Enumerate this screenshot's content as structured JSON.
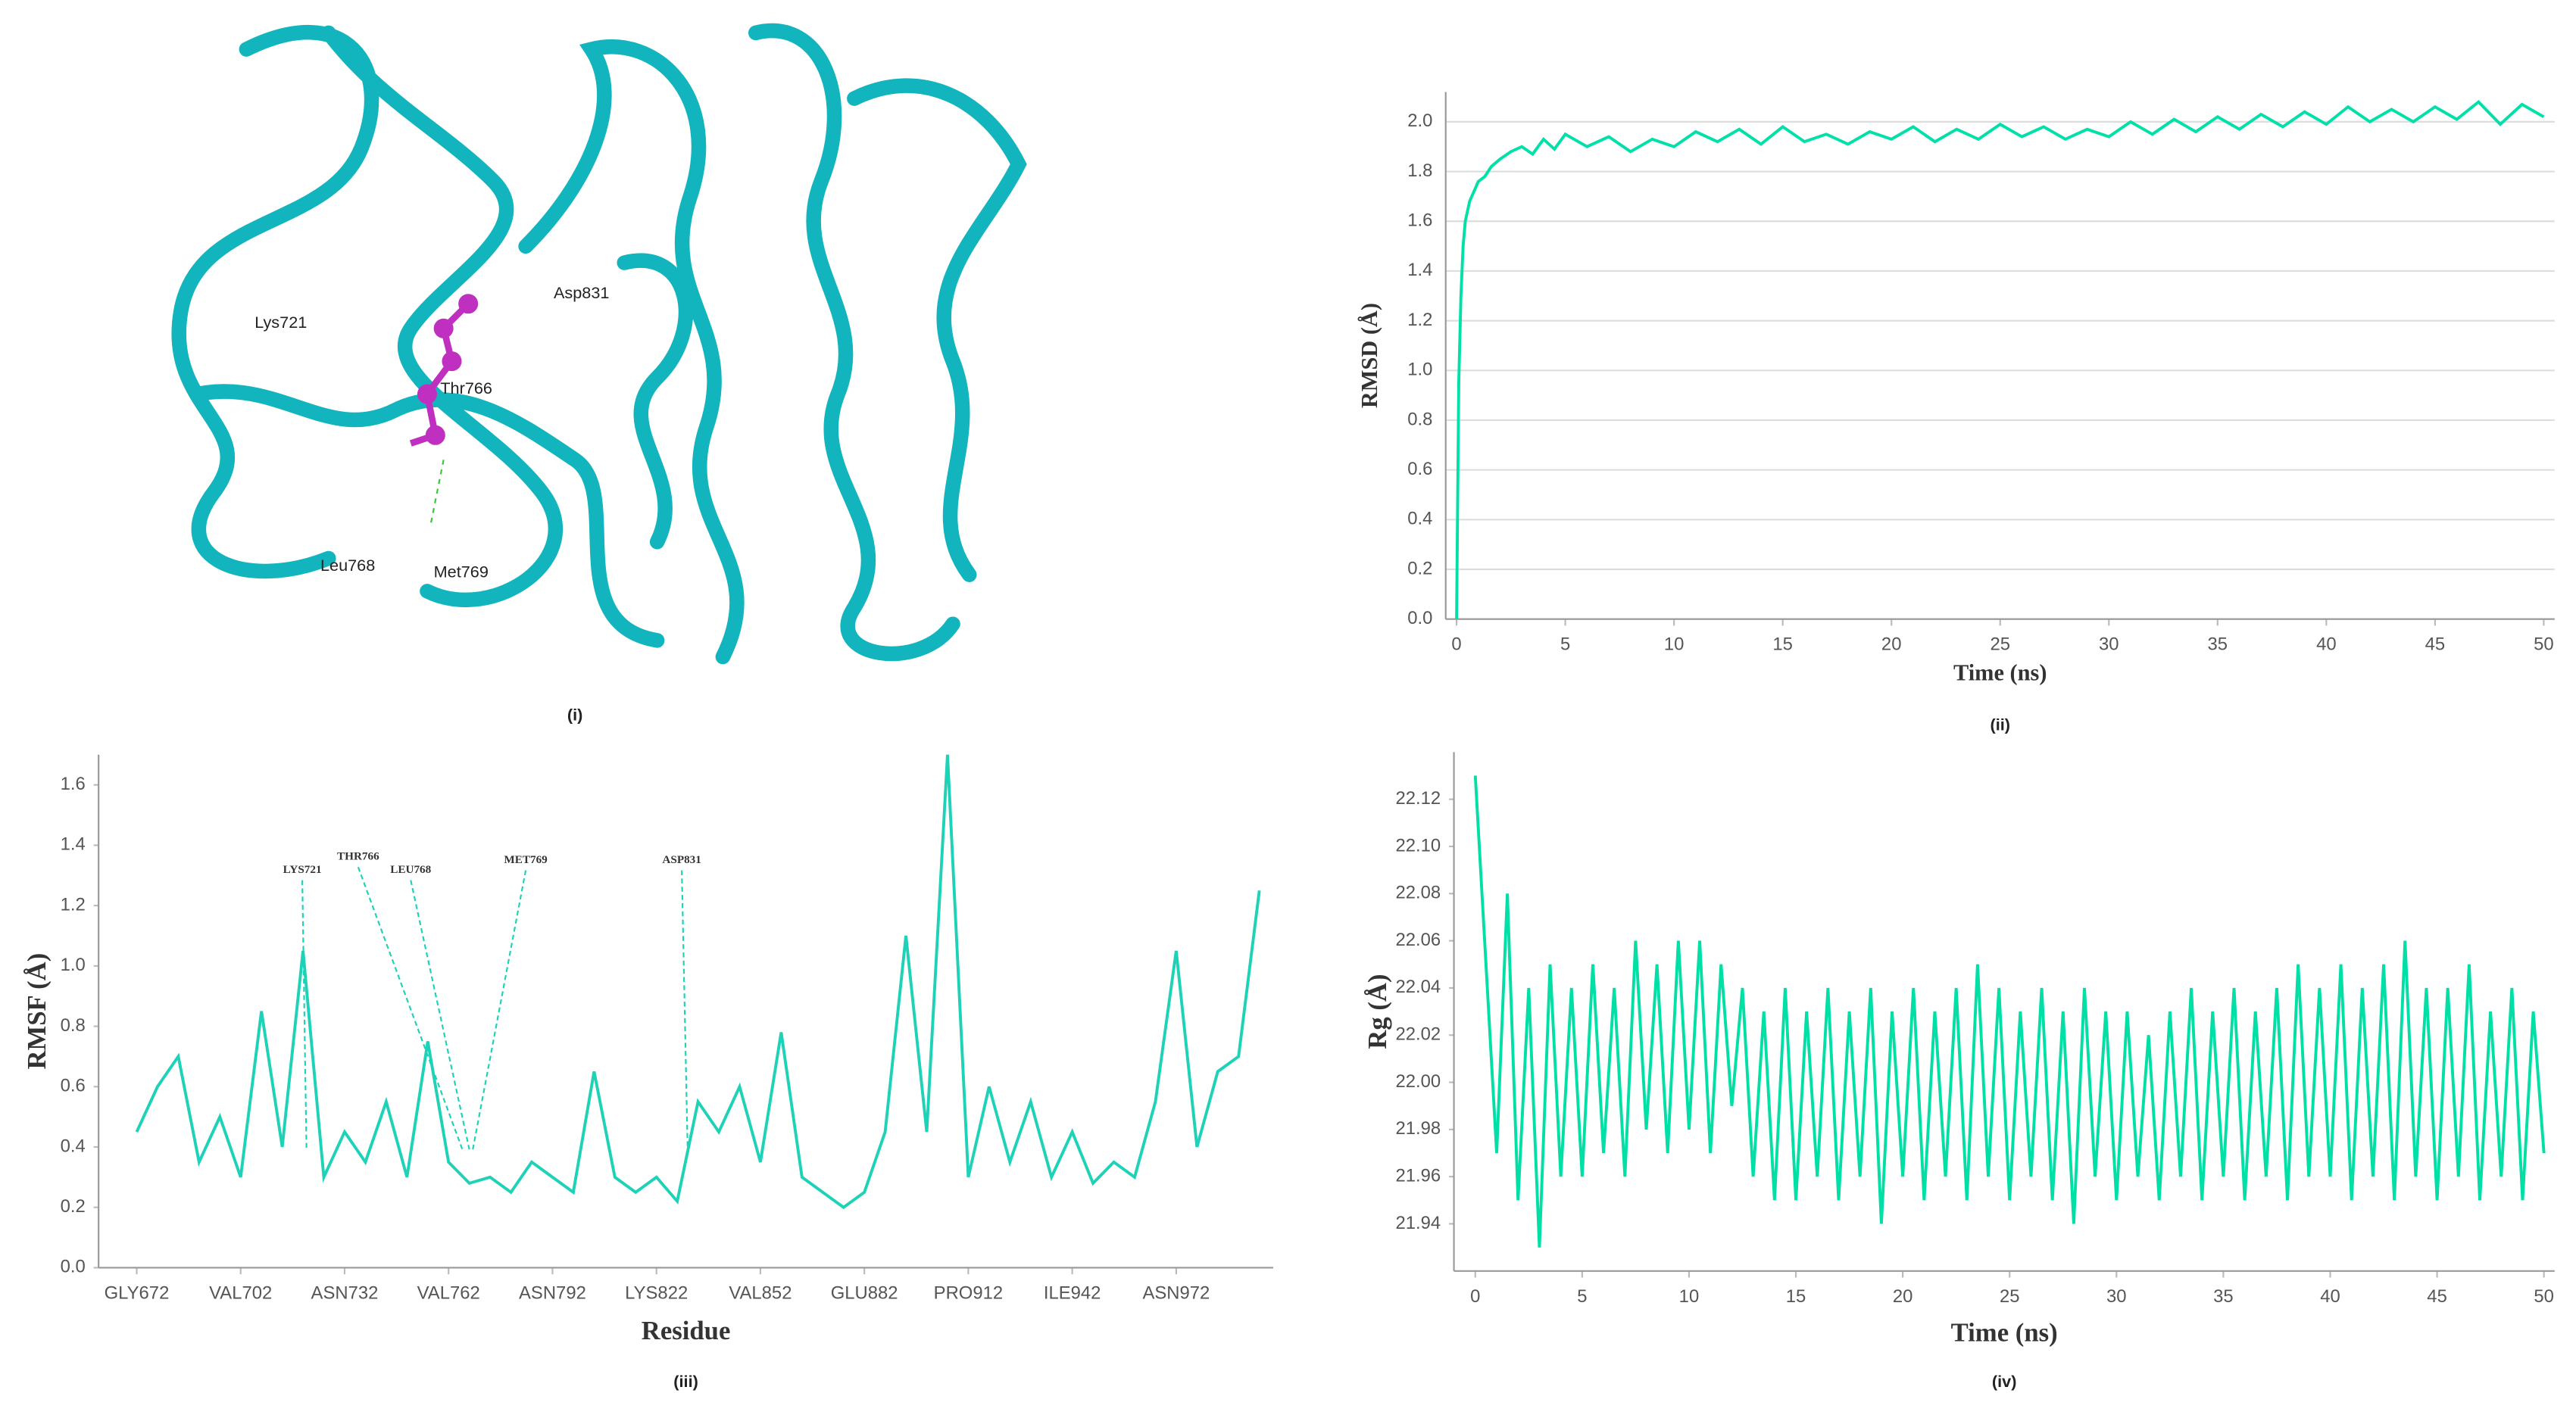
{
  "structure": {
    "labels": [
      "Lys721",
      "Asp831",
      "Thr766",
      "Leu768",
      "Met769"
    ],
    "caption": "(i)"
  },
  "chart_data": [
    {
      "type": "line",
      "caption": "(ii)",
      "xlabel": "Time (ns)",
      "ylabel": "RMSD (Å)",
      "color": "#00e0a8",
      "grid": true,
      "xlim": [
        -0.5,
        50.5
      ],
      "ylim": [
        0,
        2.12
      ],
      "xticks": [
        0,
        5,
        10,
        15,
        20,
        25,
        30,
        35,
        40,
        45,
        50
      ],
      "yticks": [
        {
          "value": 0,
          "label": "0.0"
        },
        0.2,
        0.4,
        0.6,
        0.8,
        {
          "value": 1,
          "label": "1.0"
        },
        1.2,
        1.4,
        1.6,
        1.8,
        {
          "value": 2,
          "label": "2.0"
        }
      ],
      "x": [
        0,
        0.1,
        0.2,
        0.3,
        0.4,
        0.6,
        0.8,
        1,
        1.3,
        1.6,
        2,
        2.5,
        3,
        3.5,
        4,
        4.5,
        5,
        6,
        7,
        8,
        9,
        10,
        11,
        12,
        13,
        14,
        15,
        16,
        17,
        18,
        19,
        20,
        21,
        22,
        23,
        24,
        25,
        26,
        27,
        28,
        29,
        30,
        31,
        32,
        33,
        34,
        35,
        36,
        37,
        38,
        39,
        40,
        41,
        42,
        43,
        44,
        45,
        46,
        47,
        48,
        49,
        50
      ],
      "values": [
        0,
        0.95,
        1.3,
        1.5,
        1.6,
        1.68,
        1.72,
        1.76,
        1.78,
        1.82,
        1.85,
        1.88,
        1.9,
        1.87,
        1.93,
        1.89,
        1.95,
        1.9,
        1.94,
        1.88,
        1.93,
        1.9,
        1.96,
        1.92,
        1.97,
        1.91,
        1.98,
        1.92,
        1.95,
        1.91,
        1.96,
        1.93,
        1.98,
        1.92,
        1.97,
        1.93,
        1.99,
        1.94,
        1.98,
        1.93,
        1.97,
        1.94,
        2.0,
        1.95,
        2.01,
        1.96,
        2.02,
        1.97,
        2.03,
        1.98,
        2.04,
        1.99,
        2.06,
        2.0,
        2.05,
        2.0,
        2.06,
        2.01,
        2.08,
        1.99,
        2.07,
        2.02
      ]
    },
    {
      "type": "line",
      "caption": "(iii)",
      "xlabel": "Residue",
      "ylabel": "RMSF (Å)",
      "color": "#1ed2b8",
      "grid": false,
      "xlim": [
        661,
        1000
      ],
      "ylim": [
        0,
        1.7
      ],
      "xticks": [
        {
          "value": 672,
          "label": "GLY672"
        },
        {
          "value": 702,
          "label": "VAL702"
        },
        {
          "value": 732,
          "label": "ASN732"
        },
        {
          "value": 762,
          "label": "VAL762"
        },
        {
          "value": 792,
          "label": "ASN792"
        },
        {
          "value": 822,
          "label": "LYS822"
        },
        {
          "value": 852,
          "label": "VAL852"
        },
        {
          "value": 882,
          "label": "GLU882"
        },
        {
          "value": 912,
          "label": "PRO912"
        },
        {
          "value": 942,
          "label": "ILE942"
        },
        {
          "value": 972,
          "label": "ASN972"
        }
      ],
      "yticks": [
        {
          "value": 0,
          "label": "0.0"
        },
        0.2,
        0.4,
        0.6,
        0.8,
        {
          "value": 1,
          "label": "1.0"
        },
        1.2,
        1.4,
        1.6
      ],
      "annotations": [
        {
          "text": "LYS721",
          "x": 721
        },
        {
          "text": "THR766",
          "x": 766
        },
        {
          "text": "LEU768",
          "x": 768
        },
        {
          "text": "MET769",
          "x": 769
        },
        {
          "text": "ASP831",
          "x": 831
        }
      ],
      "x": [
        672,
        678,
        684,
        690,
        696,
        702,
        708,
        714,
        720,
        726,
        732,
        738,
        744,
        750,
        756,
        762,
        768,
        774,
        780,
        786,
        792,
        798,
        804,
        810,
        816,
        822,
        828,
        834,
        840,
        846,
        852,
        858,
        864,
        870,
        876,
        882,
        888,
        894,
        900,
        906,
        912,
        918,
        924,
        930,
        936,
        942,
        948,
        954,
        960,
        966,
        972,
        978,
        984,
        990,
        996
      ],
      "values": [
        0.45,
        0.6,
        0.7,
        0.35,
        0.5,
        0.3,
        0.85,
        0.4,
        1.05,
        0.3,
        0.45,
        0.35,
        0.55,
        0.3,
        0.75,
        0.35,
        0.28,
        0.3,
        0.25,
        0.35,
        0.3,
        0.25,
        0.65,
        0.3,
        0.25,
        0.3,
        0.22,
        0.55,
        0.45,
        0.6,
        0.35,
        0.78,
        0.3,
        0.25,
        0.2,
        0.25,
        0.45,
        1.1,
        0.45,
        1.7,
        0.3,
        0.6,
        0.35,
        0.55,
        0.3,
        0.45,
        0.28,
        0.35,
        0.3,
        0.55,
        1.05,
        0.4,
        0.65,
        0.7,
        1.25
      ]
    },
    {
      "type": "line",
      "caption": "(iv)",
      "xlabel": "Time (ns)",
      "ylabel": "Rg (Å)",
      "color": "#00dfa6",
      "grid": false,
      "xlim": [
        -1,
        50.5
      ],
      "ylim": [
        21.92,
        22.14
      ],
      "xticks": [
        0,
        5,
        10,
        15,
        20,
        25,
        30,
        35,
        40,
        45,
        50
      ],
      "yticks": [
        21.94,
        21.96,
        21.98,
        {
          "value": 22,
          "label": "22.00"
        },
        22.02,
        22.04,
        22.06,
        22.08,
        {
          "value": 22.1,
          "label": "22.10"
        },
        22.12
      ],
      "x": [
        0,
        0.5,
        1,
        1.5,
        2,
        2.5,
        3,
        3.5,
        4,
        4.5,
        5,
        5.5,
        6,
        6.5,
        7,
        7.5,
        8,
        8.5,
        9,
        9.5,
        10,
        10.5,
        11,
        11.5,
        12,
        12.5,
        13,
        13.5,
        14,
        14.5,
        15,
        15.5,
        16,
        16.5,
        17,
        17.5,
        18,
        18.5,
        19,
        19.5,
        20,
        20.5,
        21,
        21.5,
        22,
        22.5,
        23,
        23.5,
        24,
        24.5,
        25,
        25.5,
        26,
        26.5,
        27,
        27.5,
        28,
        28.5,
        29,
        29.5,
        30,
        30.5,
        31,
        31.5,
        32,
        32.5,
        33,
        33.5,
        34,
        34.5,
        35,
        35.5,
        36,
        36.5,
        37,
        37.5,
        38,
        38.5,
        39,
        39.5,
        40,
        40.5,
        41,
        41.5,
        42,
        42.5,
        43,
        43.5,
        44,
        44.5,
        45,
        45.5,
        46,
        46.5,
        47,
        47.5,
        48,
        48.5,
        49,
        49.5,
        50
      ],
      "values": [
        22.13,
        22.05,
        21.97,
        22.08,
        21.95,
        22.04,
        21.93,
        22.05,
        21.96,
        22.04,
        21.96,
        22.05,
        21.97,
        22.04,
        21.96,
        22.06,
        21.98,
        22.05,
        21.97,
        22.06,
        21.98,
        22.06,
        21.97,
        22.05,
        21.99,
        22.04,
        21.96,
        22.03,
        21.95,
        22.04,
        21.95,
        22.03,
        21.96,
        22.04,
        21.95,
        22.03,
        21.96,
        22.04,
        21.94,
        22.03,
        21.96,
        22.04,
        21.95,
        22.03,
        21.96,
        22.04,
        21.95,
        22.05,
        21.96,
        22.04,
        21.95,
        22.03,
        21.96,
        22.04,
        21.95,
        22.03,
        21.94,
        22.04,
        21.96,
        22.03,
        21.95,
        22.03,
        21.96,
        22.02,
        21.95,
        22.03,
        21.96,
        22.04,
        21.95,
        22.03,
        21.96,
        22.04,
        21.95,
        22.03,
        21.96,
        22.04,
        21.95,
        22.05,
        21.96,
        22.04,
        21.96,
        22.05,
        21.95,
        22.04,
        21.96,
        22.05,
        21.95,
        22.06,
        21.96,
        22.04,
        21.95,
        22.04,
        21.96,
        22.05,
        21.95,
        22.03,
        21.96,
        22.04,
        21.95,
        22.03,
        21.97
      ]
    }
  ]
}
